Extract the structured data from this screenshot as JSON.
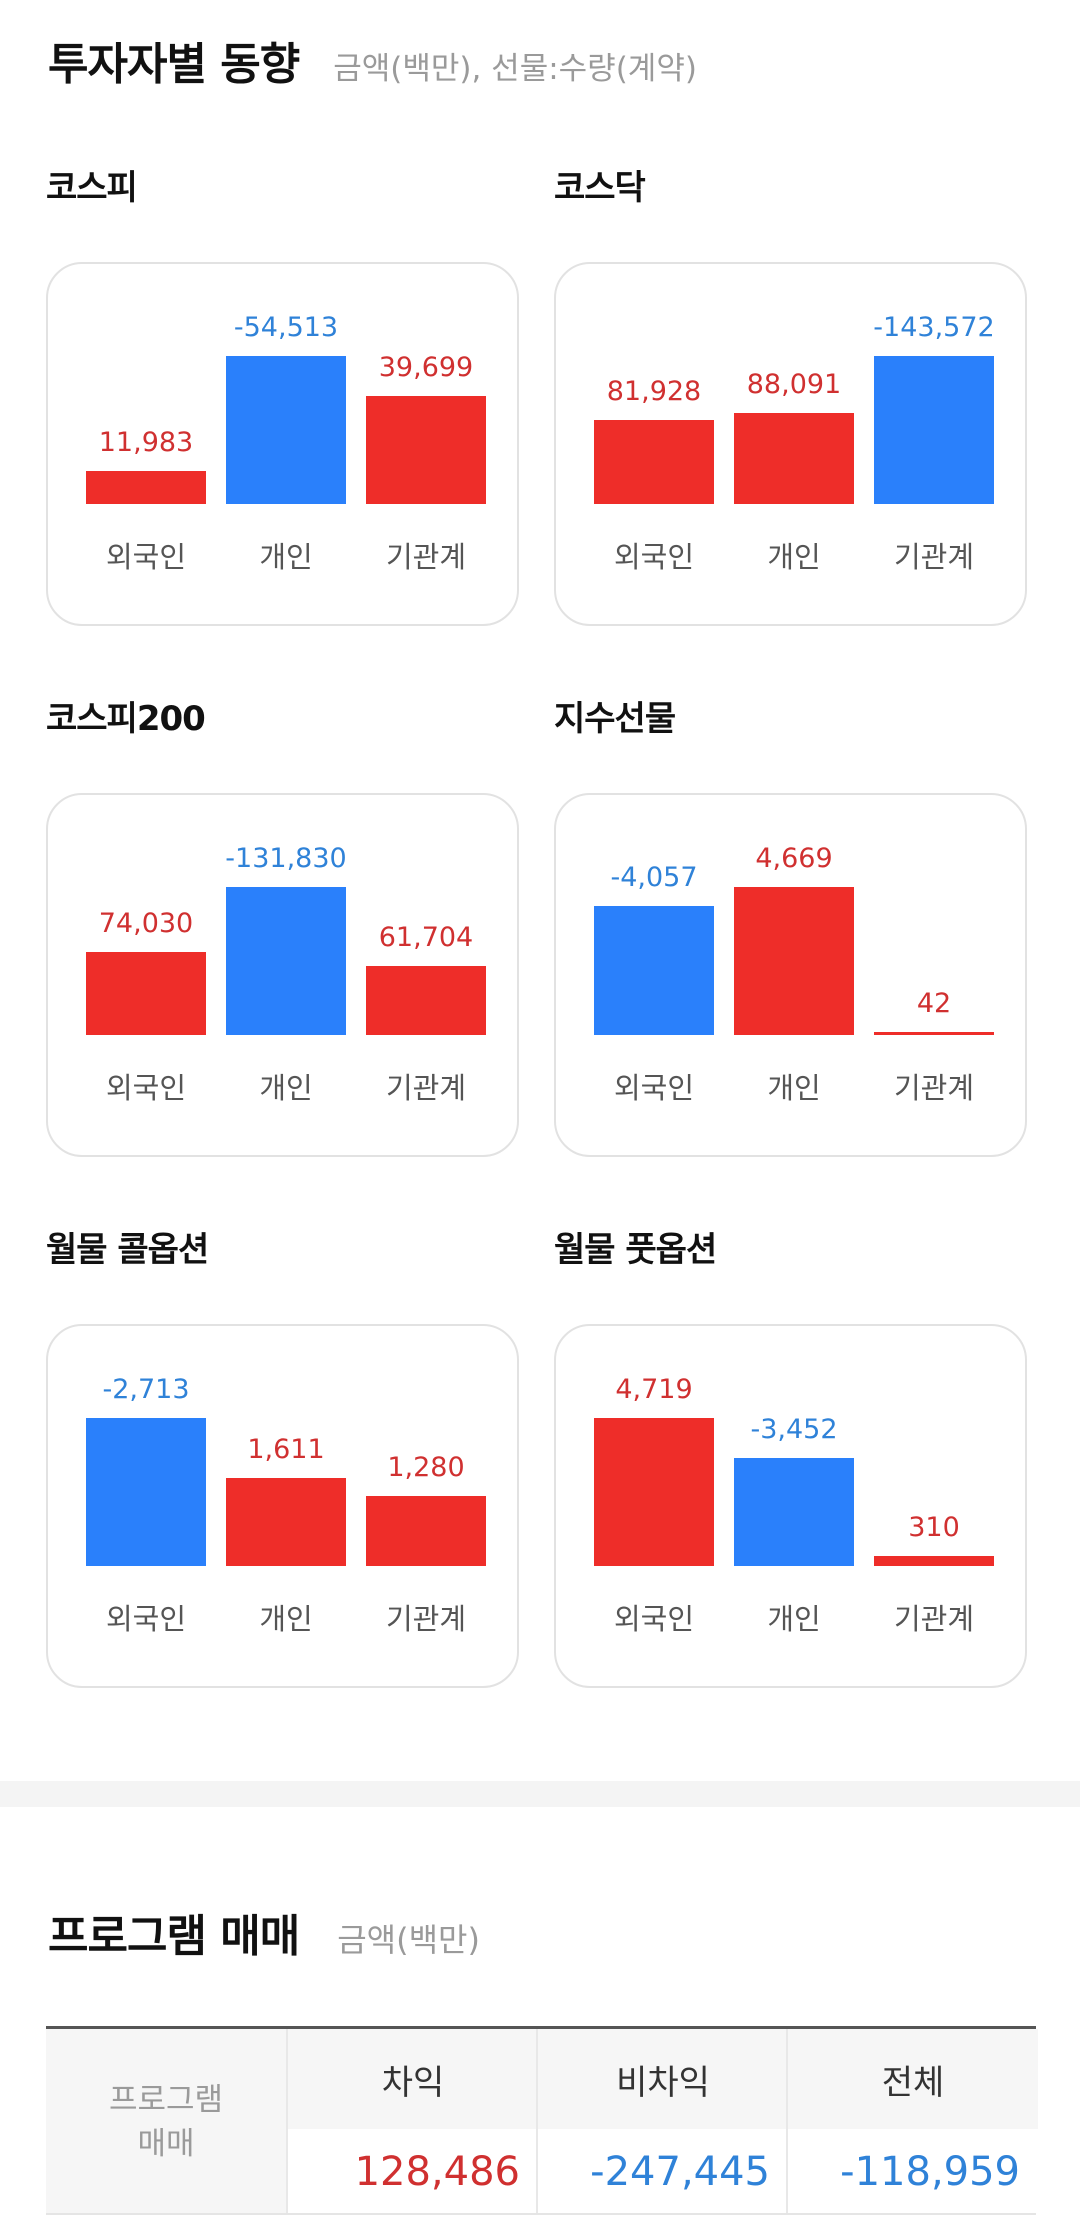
{
  "investor_trend": {
    "title": "투자자별 동향",
    "subtitle": "금액(백만), 선물:수량(계약)"
  },
  "colors": {
    "positive": "#ee2d29",
    "negative": "#2a80fb",
    "positive_text": "#d03030",
    "negative_text": "#2f82d8"
  },
  "categories": [
    "외국인",
    "개인",
    "기관계"
  ],
  "markets": [
    {
      "label": "코스피",
      "values": [
        "11,983",
        "-54,513",
        "39,699"
      ],
      "numbers": [
        11983,
        -54513,
        39699
      ]
    },
    {
      "label": "코스닥",
      "values": [
        "81,928",
        "88,091",
        "-143,572"
      ],
      "numbers": [
        81928,
        88091,
        -143572
      ]
    },
    {
      "label": "코스피200",
      "values": [
        "74,030",
        "-131,830",
        "61,704"
      ],
      "numbers": [
        74030,
        -131830,
        61704
      ]
    },
    {
      "label": "지수선물",
      "values": [
        "-4,057",
        "4,669",
        "42"
      ],
      "numbers": [
        -4057,
        4669,
        42
      ]
    },
    {
      "label": "월물 콜옵션",
      "values": [
        "-2,713",
        "1,611",
        "1,280"
      ],
      "numbers": [
        -2713,
        1611,
        1280
      ]
    },
    {
      "label": "월물 풋옵션",
      "values": [
        "4,719",
        "-3,452",
        "310"
      ],
      "numbers": [
        4719,
        -3452,
        310
      ]
    }
  ],
  "program_trading": {
    "title": "프로그램 매매",
    "subtitle": "금액(백만)",
    "row_header_line1": "프로그램",
    "row_header_line2": "매매",
    "columns": [
      "차익",
      "비차익",
      "전체"
    ],
    "values": [
      "128,486",
      "-247,445",
      "-118,959"
    ],
    "signs": [
      "positive",
      "negative",
      "negative"
    ]
  }
}
